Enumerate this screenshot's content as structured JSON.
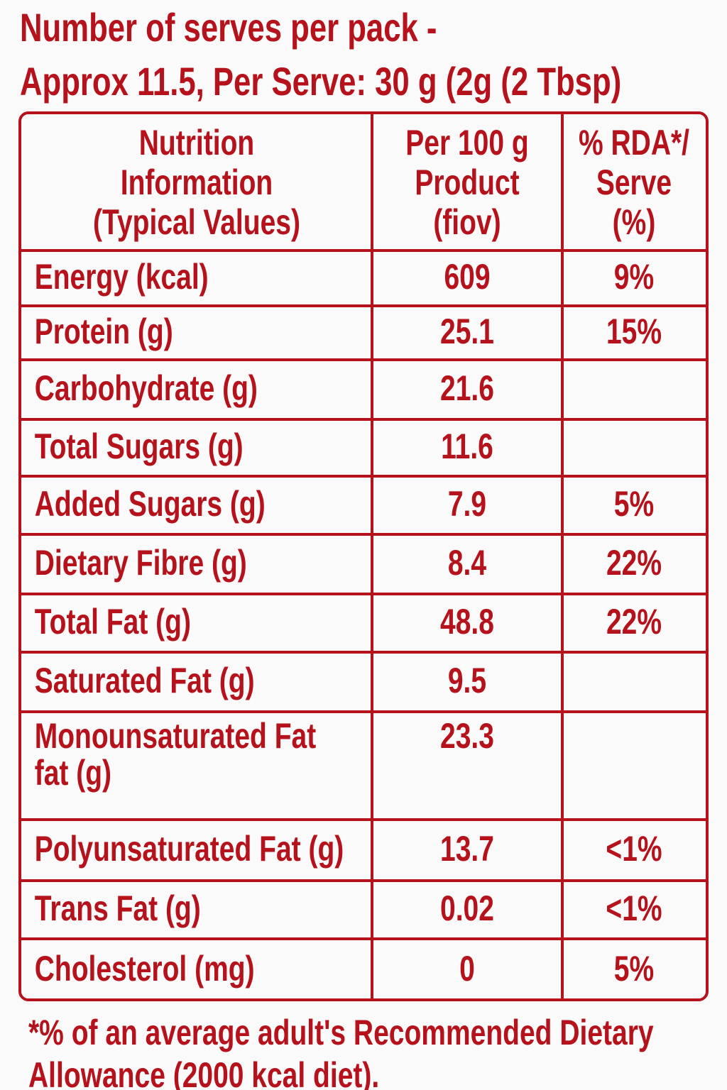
{
  "header": {
    "line1": "Number of serves per pack -",
    "line2": "Approx 11.5, Per Serve: 30 g (2g (2 Tbsp)"
  },
  "table": {
    "columns": [
      "Nutrition Information (Typical Values)",
      "Per 100 g Product (fiov)",
      "% RDA*/ Serve (%)"
    ],
    "rows": [
      {
        "name": "Energy (kcal)",
        "value": "609",
        "rda": "9%"
      },
      {
        "name": "Protein (g)",
        "value": "25.1",
        "rda": "15%"
      },
      {
        "name": "Carbohydrate (g)",
        "value": "21.6"
      },
      {
        "name": "Total Sugars (g)",
        "value": "11.6"
      },
      {
        "name": "Added Sugars (g)",
        "value": "7.9",
        "rda": "5%"
      },
      {
        "name": "Dietary Fibre (g)",
        "value": "8.4",
        "rda": "22%"
      },
      {
        "name": "Total Fat (g)",
        "value": "48.8",
        "rda": "22%"
      },
      {
        "name": "Saturated Fat (g)",
        "value": "9.5"
      },
      {
        "name": "Monounsaturated Fat fat (g)",
        "value": "23.3"
      },
      {
        "name": "Polyunsaturated Fat (g)",
        "value": "13.7",
        "rda": "<1%"
      },
      {
        "name": "Trans Fat (g)",
        "value": "0.02",
        "rda": "<1%"
      },
      {
        "name": "Cholesterol (mg)",
        "value": "0",
        "rda": "5%"
      }
    ]
  },
  "footnote": "*% of an average adult's Recommended Dietary Allowance (2000 kcal diet)."
}
